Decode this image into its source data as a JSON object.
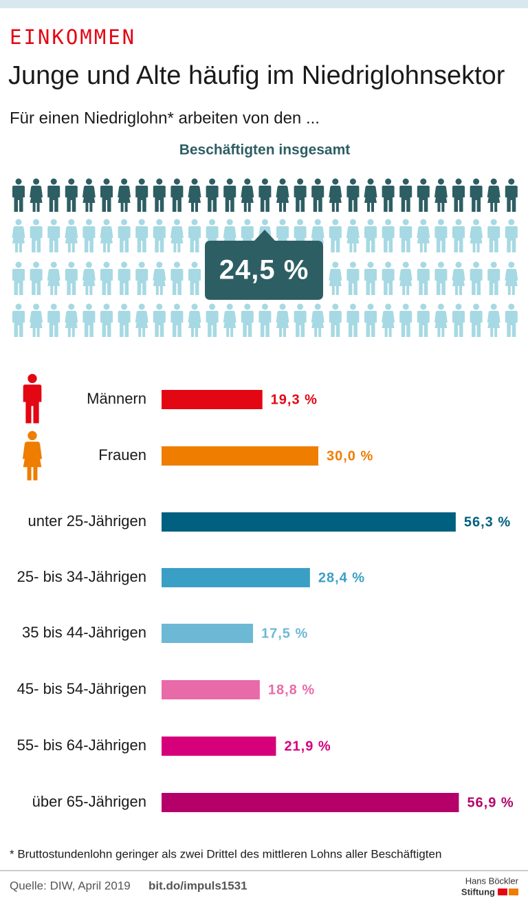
{
  "header": {
    "kicker": "EINKOMMEN",
    "title": "Junge und Alte häufig im Niedriglohnsektor",
    "subtitle": "Für einen Niedriglohn* arbeiten von den ..."
  },
  "chart_data": [
    {
      "type": "pictogram",
      "title": "Beschäftigten insgesamt",
      "value": 24.5,
      "value_label": "24,5 %",
      "color": "#2d5e63",
      "base_color": "#a6d9e3"
    },
    {
      "type": "hbar",
      "categories": [
        "Männern",
        "Frauen",
        "unter 25-Jährigen",
        "25- bis 34-Jährigen",
        "35 bis 44-Jährigen",
        "45- bis 54-Jährigen",
        "55- bis 64-Jährigen",
        "über 65-Jährigen"
      ],
      "values": [
        19.3,
        30.0,
        56.3,
        28.4,
        17.5,
        18.8,
        21.9,
        56.9
      ],
      "value_labels": [
        "19,3 %",
        "30,0 %",
        "56,3 %",
        "28,4 %",
        "17,5 %",
        "18,8 %",
        "21,9 %",
        "56,9 %"
      ],
      "colors": [
        "#e30613",
        "#ef7d00",
        "#00607f",
        "#3a9fc4",
        "#6cb8d5",
        "#e96aa8",
        "#d6007b",
        "#b5006a"
      ],
      "xlim": [
        0,
        60
      ]
    }
  ],
  "footnote": "* Bruttostundenlohn geringer als zwei Drittel des mittleren Lohns aller Beschäftigten",
  "footer": {
    "source": "Quelle: DIW, April 2019",
    "link": "bit.do/impuls1531",
    "brand_line1": "Hans Böckler",
    "brand_line2": "Stiftung"
  }
}
